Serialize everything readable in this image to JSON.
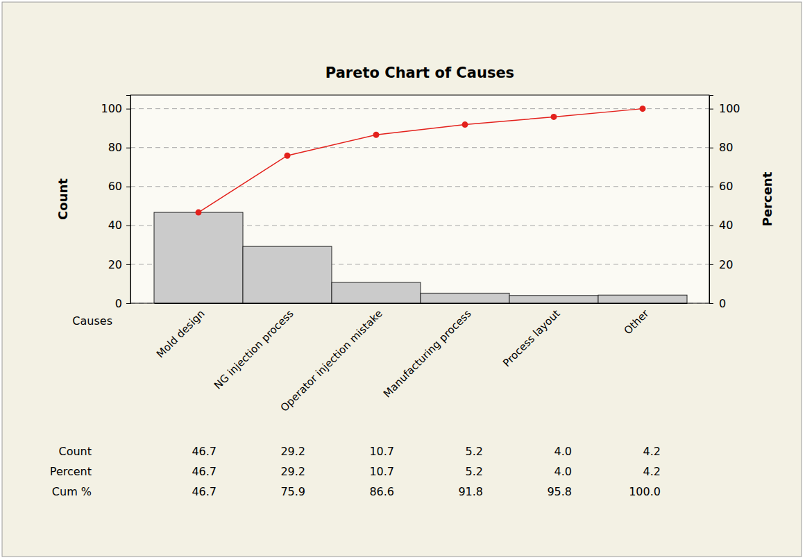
{
  "chart_data": {
    "type": "bar",
    "title": "Pareto Chart of Causes",
    "xlabel": "Causes",
    "ylabel": "Count",
    "y2label": "Percent",
    "categories": [
      "Mold design",
      "NG injection process",
      "Operator injection mistake",
      "Manufacturing process",
      "Process layout",
      "Other"
    ],
    "series": [
      {
        "name": "Count",
        "type": "bar",
        "color": "#cbcbcb",
        "values": [
          46.7,
          29.2,
          10.7,
          5.2,
          4.0,
          4.2
        ],
        "value_labels": [
          "46.7",
          "29.2",
          "10.7",
          "5.2",
          "4.0",
          "4.2"
        ]
      },
      {
        "name": "Percent",
        "type": "table",
        "values": [
          46.7,
          29.2,
          10.7,
          5.2,
          4.0,
          4.2
        ],
        "value_labels": [
          "46.7",
          "29.2",
          "10.7",
          "5.2",
          "4.0",
          "4.2"
        ]
      },
      {
        "name": "Cum %",
        "type": "line",
        "axis": "y2",
        "color": "#e3211c",
        "marker": "circle",
        "values": [
          46.7,
          75.9,
          86.6,
          91.8,
          95.8,
          100.0
        ],
        "value_labels": [
          "46.7",
          "75.9",
          "86.6",
          "91.8",
          "95.8",
          "100.0"
        ]
      }
    ],
    "ylim": [
      0,
      107
    ],
    "yticks": [
      0,
      20,
      40,
      60,
      80,
      100
    ],
    "y2lim": [
      0,
      107
    ],
    "y2ticks": [
      0,
      20,
      40,
      60,
      80,
      100
    ],
    "grid": true
  }
}
